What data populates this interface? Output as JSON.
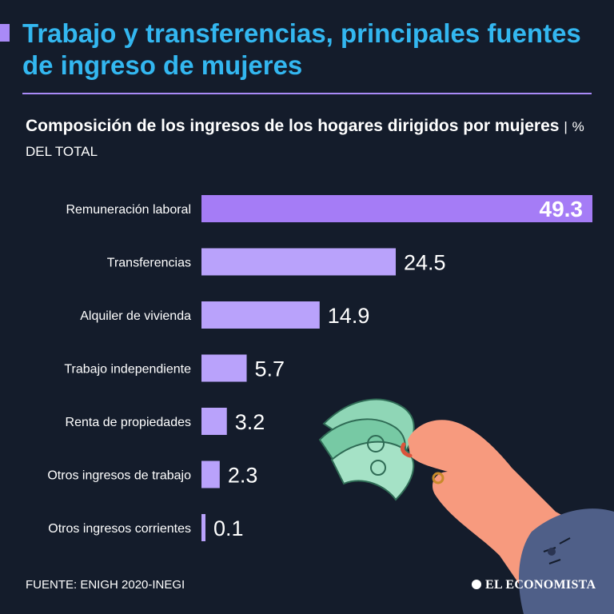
{
  "header": {
    "title": "Trabajo y transferencias, principales fuentes de ingreso de mujeres",
    "subtitle_main": "Composición de los ingresos de los hogares dirigidos por mujeres",
    "subtitle_unit": "% DEL TOTAL"
  },
  "chart_data": {
    "type": "bar",
    "orientation": "horizontal",
    "title": "Composición de los ingresos de los hogares dirigidos por mujeres",
    "unit": "% DEL TOTAL",
    "categories": [
      "Remuneración laboral",
      "Transferencias",
      "Alquiler de vivienda",
      "Trabajo independiente",
      "Renta de propiedades",
      "Otros ingresos de trabajo",
      "Otros ingresos corrientes"
    ],
    "values": [
      49.3,
      24.5,
      14.9,
      5.7,
      3.2,
      2.3,
      0.1
    ],
    "value_labels": [
      "49.3",
      "24.5",
      "14.9",
      "5.7",
      "3.2",
      "2.3",
      "0.1"
    ],
    "xlim": [
      0,
      49.3
    ],
    "highlight_index": 0,
    "colors": {
      "highlight": "#a57cf6",
      "bar": "#b9a2fb",
      "label": "#ffffff"
    },
    "grid": false,
    "legend": "none"
  },
  "footer": {
    "source": "FUENTE: ENIGH 2020-INEGI",
    "logo": "EL ECONOMISTA"
  },
  "illustration": {
    "icon": "hand-holding-money-icon"
  }
}
